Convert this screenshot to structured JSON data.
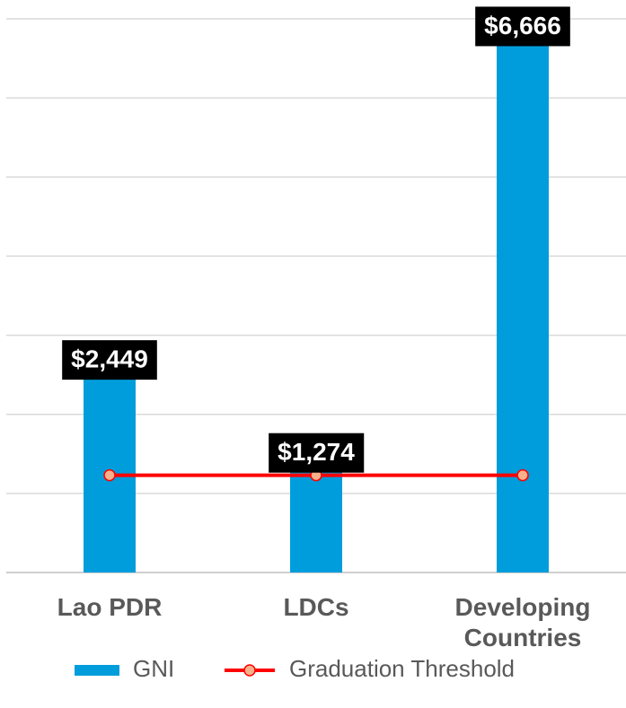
{
  "chart_data": {
    "type": "bar",
    "categories": [
      "Lao PDR",
      "LDCs",
      "Developing Countries"
    ],
    "series": [
      {
        "name": "GNI",
        "type": "bar",
        "color": "#009ddc",
        "values": [
          2449,
          1274,
          6666
        ],
        "value_labels": [
          "$2,449",
          "$1,274",
          "$6,666"
        ]
      },
      {
        "name": "Graduation Threshold",
        "type": "line",
        "color": "#ff0000",
        "marker_color": "#f8b08a",
        "values": [
          1230,
          1230,
          1230
        ]
      }
    ],
    "ylim": [
      0,
      7000
    ],
    "yticks": [
      0,
      1000,
      2000,
      3000,
      4000,
      5000,
      6000,
      7000
    ],
    "grid": true
  }
}
